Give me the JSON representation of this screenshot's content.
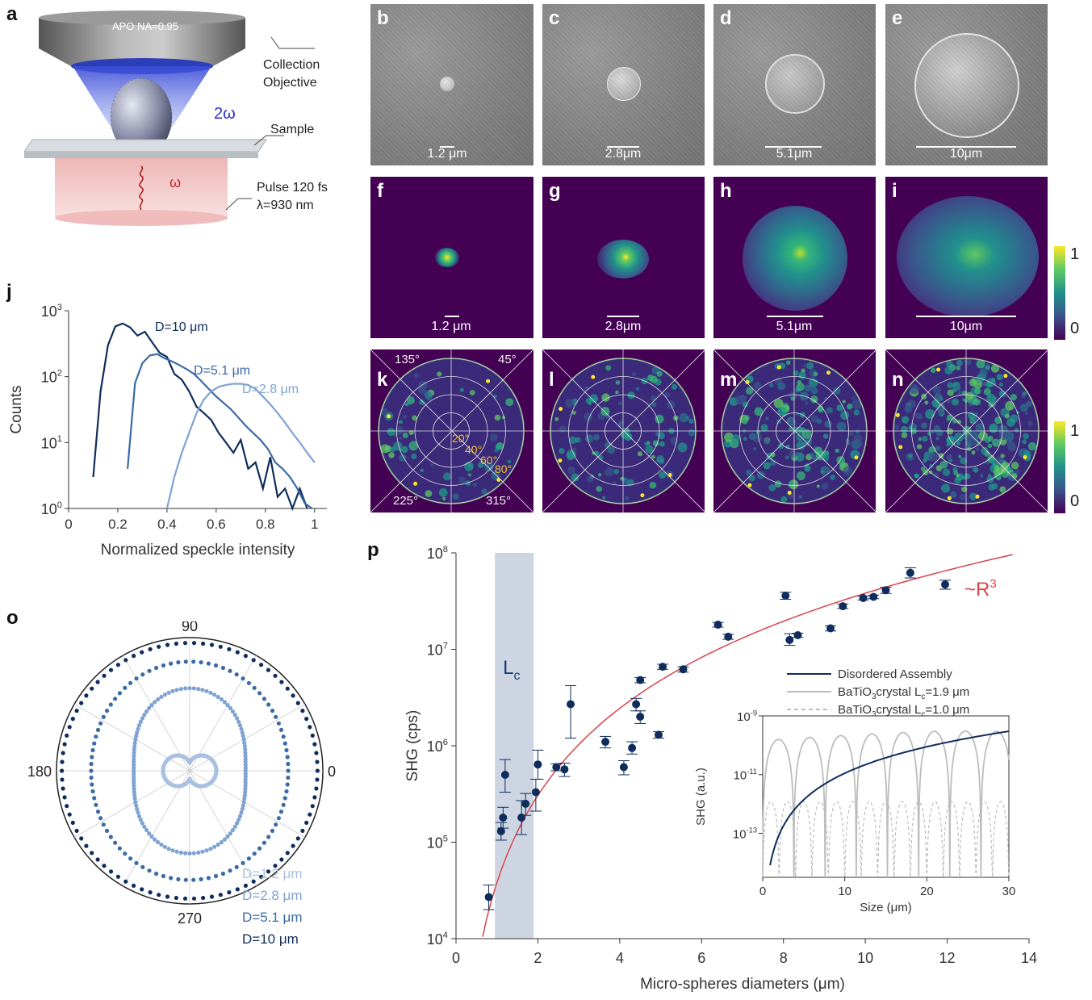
{
  "panels": {
    "a": {
      "label": "a",
      "objective_text": "APO   NA=0.95",
      "collection_objective_1": "Collection",
      "collection_objective_2": "Objective",
      "two_omega": "2ω",
      "sample": "Sample",
      "omega": "ω",
      "pulse": "Pulse 120 fs",
      "wavelength": "λ=930 nm"
    },
    "sem": [
      {
        "label": "b",
        "scale": "1.2 μm",
        "sphere_diameter_um": 1.2
      },
      {
        "label": "c",
        "scale": "2.8μm",
        "sphere_diameter_um": 2.8
      },
      {
        "label": "d",
        "scale": "5.1μm",
        "sphere_diameter_um": 5.1
      },
      {
        "label": "e",
        "scale": "10μm",
        "sphere_diameter_um": 10
      }
    ],
    "shg_images": [
      {
        "label": "f",
        "scale": "1.2 μm"
      },
      {
        "label": "g",
        "scale": "2.8μm"
      },
      {
        "label": "h",
        "scale": "5.1μm"
      },
      {
        "label": "i",
        "scale": "10μm"
      }
    ],
    "colorbar_top": {
      "max": "1",
      "min": "0"
    },
    "kspace": [
      {
        "label": "k"
      },
      {
        "label": "l"
      },
      {
        "label": "m"
      },
      {
        "label": "n"
      }
    ],
    "kspace_angles": {
      "a135": "135°",
      "a45": "45°",
      "a225": "225°",
      "a315": "315°"
    },
    "kspace_rings": [
      "20°",
      "40°",
      "60°",
      "80°"
    ],
    "colorbar_bottom": {
      "max": "1",
      "min": "0"
    },
    "j": {
      "label": "j"
    },
    "o": {
      "label": "o"
    },
    "p": {
      "label": "p"
    }
  },
  "colors": {
    "dark_blue": "#0f2d5c",
    "mid_blue": "#3a6aa8",
    "light_blue": "#7ea3d2",
    "lighter_blue": "#a9c0e0",
    "fit_red": "#d9434c",
    "lc_band": "#cdd5e3",
    "gray": "#bdbdbd",
    "yellow_angle": "#f2c12e"
  },
  "chart_data": [
    {
      "id": "j",
      "type": "line",
      "xlabel": "Normalized speckle intensity",
      "ylabel": "Counts",
      "xlim": [
        0,
        1.05
      ],
      "ylim_log10": [
        0,
        3
      ],
      "y_scale": "log",
      "x_ticks": [
        "0",
        "0.2",
        "0.4",
        "0.6",
        "0.8",
        "1"
      ],
      "y_ticks": [
        "10^0",
        "10^1",
        "10^2",
        "10^3"
      ],
      "series": [
        {
          "name": "D=10 μm",
          "color": "#0f2d5c",
          "x": [
            0.1,
            0.13,
            0.16,
            0.19,
            0.22,
            0.25,
            0.28,
            0.31,
            0.34,
            0.37,
            0.4,
            0.43,
            0.46,
            0.49,
            0.52,
            0.55,
            0.58,
            0.61,
            0.64,
            0.67,
            0.7,
            0.73,
            0.76,
            0.79,
            0.82,
            0.85,
            0.88,
            0.91,
            0.94,
            0.97
          ],
          "y": [
            3,
            60,
            300,
            580,
            640,
            560,
            420,
            480,
            330,
            230,
            200,
            110,
            90,
            60,
            35,
            28,
            22,
            14,
            10,
            7,
            11,
            4,
            5,
            2,
            6,
            1.5,
            2,
            1,
            2,
            1
          ]
        },
        {
          "name": "D=5.1 μm",
          "color": "#3a6aa8",
          "x": [
            0.24,
            0.27,
            0.3,
            0.33,
            0.36,
            0.39,
            0.42,
            0.45,
            0.48,
            0.51,
            0.54,
            0.57,
            0.6,
            0.63,
            0.66,
            0.69,
            0.72,
            0.75,
            0.78,
            0.81,
            0.84,
            0.87,
            0.9,
            0.93,
            0.96,
            0.99
          ],
          "y": [
            4,
            80,
            160,
            210,
            220,
            190,
            170,
            150,
            130,
            110,
            85,
            65,
            50,
            40,
            32,
            24,
            18,
            14,
            11,
            8,
            5,
            4,
            3,
            2,
            1.2,
            1
          ]
        },
        {
          "name": "D=2.8 μm",
          "color": "#7ea3d2",
          "x": [
            0.4,
            0.43,
            0.46,
            0.49,
            0.52,
            0.55,
            0.58,
            0.61,
            0.64,
            0.67,
            0.7,
            0.73,
            0.76,
            0.79,
            0.82,
            0.85,
            0.88,
            0.91,
            0.94,
            0.97,
            1.0
          ],
          "y": [
            1,
            3,
            7,
            14,
            28,
            45,
            60,
            70,
            75,
            78,
            78,
            75,
            65,
            50,
            38,
            28,
            20,
            14,
            10,
            7,
            5
          ]
        }
      ]
    },
    {
      "id": "o",
      "type": "scatter",
      "subtype": "polar",
      "angle_labels": [
        "90",
        "0",
        "270",
        "180"
      ],
      "series": [
        {
          "name": "D=1.2  μm",
          "color": "#a9c0e0",
          "shape": "figure-eight",
          "a": 0.14,
          "b": 0.06
        },
        {
          "name": "D=2.8  μm",
          "color": "#7ea3d2",
          "shape": "peanut",
          "a": 0.62,
          "b": 0.42
        },
        {
          "name": "D=5.1  μm",
          "color": "#3a6aa8",
          "shape": "ellipse",
          "a": 0.82,
          "b": 0.74
        },
        {
          "name": "D=10   μm",
          "color": "#0f2d5c",
          "shape": "circle",
          "a": 0.96,
          "b": 0.96
        }
      ]
    },
    {
      "id": "p",
      "type": "scatter",
      "xlabel": "Micro-spheres diameters (μm)",
      "ylabel": "SHG (cps)",
      "xlim": [
        0,
        14
      ],
      "ylim_log10": [
        4,
        8
      ],
      "y_scale": "log",
      "x_ticks": [
        "0",
        "2",
        "4",
        "6",
        "8",
        "10",
        "12",
        "14"
      ],
      "y_ticks": [
        "10^4",
        "10^5",
        "10^6",
        "10^7",
        "10^8"
      ],
      "band": {
        "x0": 0.95,
        "x1": 1.9,
        "label": "L",
        "label_sub": "c"
      },
      "fit_label": "~R",
      "fit_label_sup": "3",
      "fit": {
        "type": "power",
        "exponent": 3,
        "x_start": 0.65,
        "x_end": 13.6,
        "y_at_end": 96000000
      },
      "points": [
        {
          "x": 0.8,
          "y": 27000,
          "lo": 20000,
          "hi": 36000
        },
        {
          "x": 1.1,
          "y": 130000,
          "lo": 105000,
          "hi": 160000
        },
        {
          "x": 1.15,
          "y": 180000,
          "lo": 140000,
          "hi": 230000
        },
        {
          "x": 1.2,
          "y": 500000,
          "lo": 330000,
          "hi": 720000
        },
        {
          "x": 1.6,
          "y": 180000,
          "lo": 120000,
          "hi": 270000
        },
        {
          "x": 1.7,
          "y": 250000,
          "lo": 190000,
          "hi": 320000
        },
        {
          "x": 1.95,
          "y": 330000,
          "lo": 210000,
          "hi": 450000
        },
        {
          "x": 2.0,
          "y": 640000,
          "lo": 450000,
          "hi": 900000
        },
        {
          "x": 2.45,
          "y": 600000,
          "lo": 550000,
          "hi": 650000
        },
        {
          "x": 2.65,
          "y": 570000,
          "lo": 480000,
          "hi": 660000
        },
        {
          "x": 2.8,
          "y": 2700000,
          "lo": 1200000,
          "hi": 4200000
        },
        {
          "x": 3.65,
          "y": 1100000,
          "lo": 950000,
          "hi": 1250000
        },
        {
          "x": 4.1,
          "y": 600000,
          "lo": 500000,
          "hi": 700000
        },
        {
          "x": 4.3,
          "y": 950000,
          "lo": 820000,
          "hi": 1100000
        },
        {
          "x": 4.4,
          "y": 2700000,
          "lo": 2300000,
          "hi": 3100000
        },
        {
          "x": 4.5,
          "y": 2000000,
          "lo": 1700000,
          "hi": 2300000
        },
        {
          "x": 4.5,
          "y": 4800000,
          "lo": 4500000,
          "hi": 5100000
        },
        {
          "x": 4.95,
          "y": 1300000,
          "lo": 1200000,
          "hi": 1400000
        },
        {
          "x": 5.05,
          "y": 6600000,
          "lo": 6200000,
          "hi": 7000000
        },
        {
          "x": 5.55,
          "y": 6200000,
          "lo": 5800000,
          "hi": 6600000
        },
        {
          "x": 6.4,
          "y": 18000000,
          "lo": 17000000,
          "hi": 19000000
        },
        {
          "x": 6.65,
          "y": 13500000,
          "lo": 12700000,
          "hi": 14300000
        },
        {
          "x": 8.05,
          "y": 36000000,
          "lo": 33000000,
          "hi": 39000000
        },
        {
          "x": 8.15,
          "y": 12500000,
          "lo": 11000000,
          "hi": 14500000
        },
        {
          "x": 8.35,
          "y": 14000000,
          "lo": 13300000,
          "hi": 14700000
        },
        {
          "x": 9.15,
          "y": 16500000,
          "lo": 15500000,
          "hi": 17500000
        },
        {
          "x": 9.45,
          "y": 28000000,
          "lo": 26500000,
          "hi": 29500000
        },
        {
          "x": 9.95,
          "y": 34000000,
          "lo": 32500000,
          "hi": 35500000
        },
        {
          "x": 10.2,
          "y": 35000000,
          "lo": 33500000,
          "hi": 36500000
        },
        {
          "x": 10.5,
          "y": 41000000,
          "lo": 38000000,
          "hi": 44000000
        },
        {
          "x": 11.1,
          "y": 62000000,
          "lo": 55000000,
          "hi": 70000000
        },
        {
          "x": 11.95,
          "y": 47000000,
          "lo": 42000000,
          "hi": 52000000
        }
      ],
      "legend": [
        {
          "name": "Disordered Assembly",
          "color": "#0f2d5c",
          "style": "solid"
        },
        {
          "name": "BaTiO",
          "sub": "3",
          "rest": "crystal L",
          "sub2": "c",
          "rest2": "=1.9 μm",
          "color": "#bdbdbd",
          "style": "solid"
        },
        {
          "name": "BaTiO",
          "sub": "3",
          "rest": "crystal L",
          "sub2": "c",
          "rest2": "=1.0 μm",
          "color": "#bdbdbd",
          "style": "dashed"
        }
      ]
    },
    {
      "id": "p-inset",
      "type": "line",
      "xlabel": "Size (μm)",
      "ylabel": "SHG  (a.u.)",
      "xlim": [
        0,
        30
      ],
      "ylim_log10": [
        -14.5,
        -9
      ],
      "y_scale": "log",
      "x_ticks": [
        "0",
        "10",
        "20",
        "30"
      ],
      "y_ticks": [
        "10^-9",
        "10^-11",
        "10^-13"
      ],
      "series": [
        {
          "name": "Disordered Assembly",
          "exponent": 3,
          "y_at_30": 3e-10
        },
        {
          "name": "BaTiO3 crystal Lc=1.9 μm",
          "period": 3.8,
          "peak_at_30": 3e-10
        },
        {
          "name": "BaTiO3 crystal Lc=1.0 μm",
          "period": 2.0,
          "peak": 1.2e-12
        }
      ]
    }
  ]
}
